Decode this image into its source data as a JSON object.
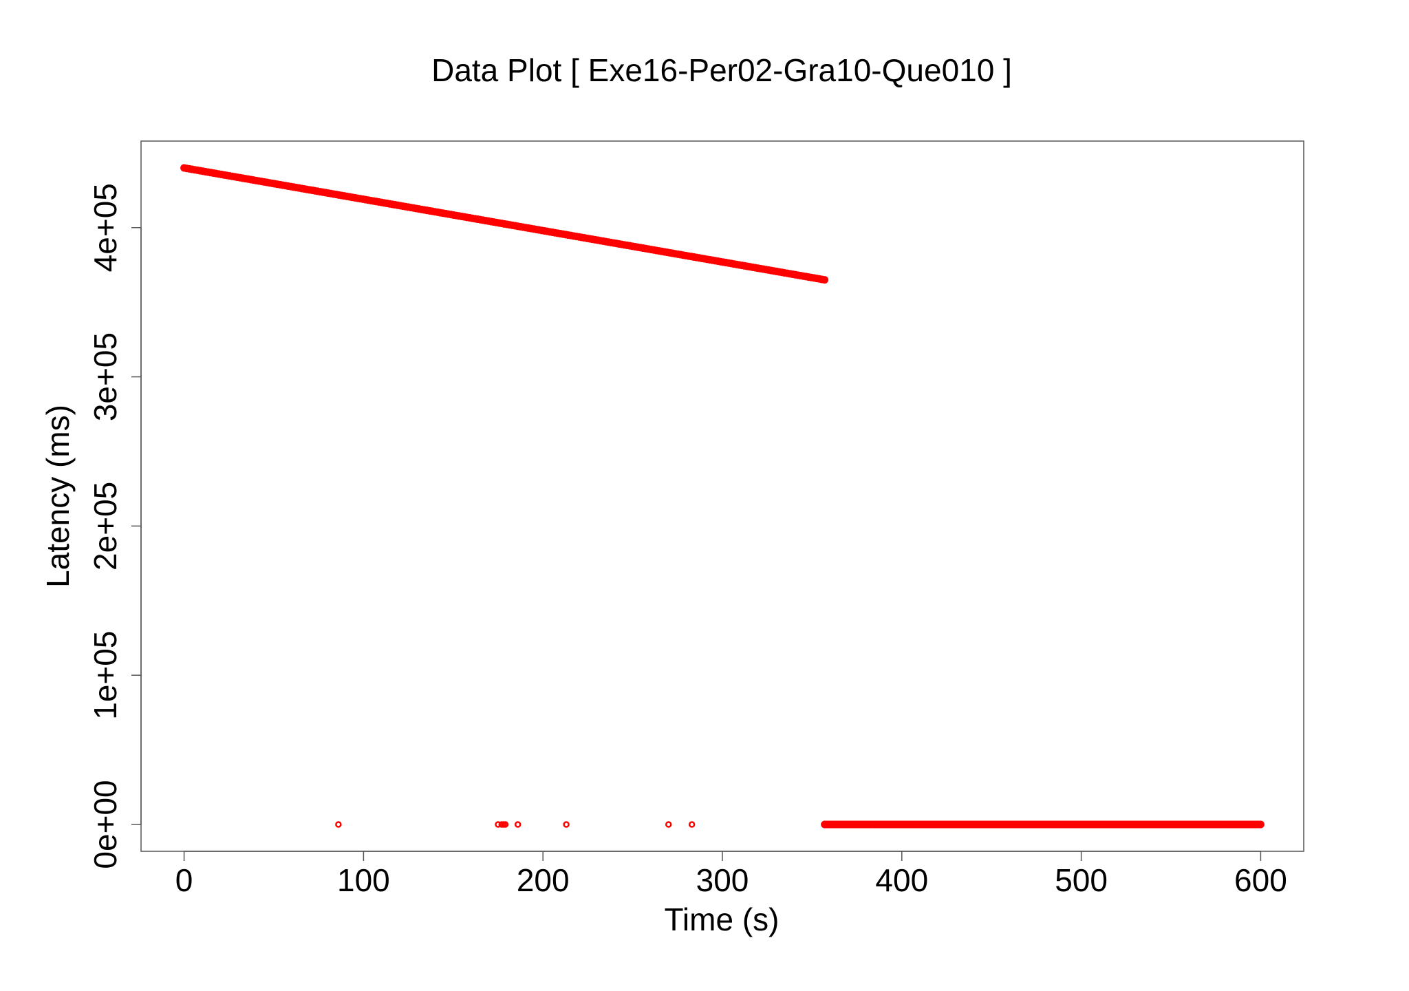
{
  "chart_data": {
    "type": "scatter",
    "title": "Data Plot [ Exe16-Per02-Gra10-Que010 ]",
    "xlabel": "Time (s)",
    "ylabel": "Latency (ms)",
    "xlim": [
      -24,
      624
    ],
    "ylim": [
      -18000,
      458000
    ],
    "x_ticks": [
      0,
      100,
      200,
      300,
      400,
      500,
      600
    ],
    "x_tick_labels": [
      "0",
      "100",
      "200",
      "300",
      "400",
      "500",
      "600"
    ],
    "y_ticks": [
      0,
      100000,
      200000,
      300000,
      400000
    ],
    "y_tick_labels": [
      "0e+00",
      "1e+05",
      "2e+05",
      "3e+05",
      "4e+05"
    ],
    "grid": false,
    "legend": "none",
    "marker_color": "#ff0000",
    "series": [
      {
        "segments": [
          {
            "kind": "dense-line",
            "x_start": 0,
            "y_start": 440000,
            "x_end": 357,
            "y_end": 365000
          },
          {
            "kind": "dense-line",
            "x_start": 357,
            "y_start": 0,
            "x_end": 600,
            "y_end": 0
          }
        ],
        "points": [
          {
            "x": 86,
            "y": 0
          },
          {
            "x": 175,
            "y": 0
          },
          {
            "x": 177,
            "y": 0
          },
          {
            "x": 178,
            "y": 0
          },
          {
            "x": 179,
            "y": 0
          },
          {
            "x": 186,
            "y": 0
          },
          {
            "x": 213,
            "y": 0
          },
          {
            "x": 270,
            "y": 0
          },
          {
            "x": 283,
            "y": 0
          }
        ]
      }
    ]
  }
}
